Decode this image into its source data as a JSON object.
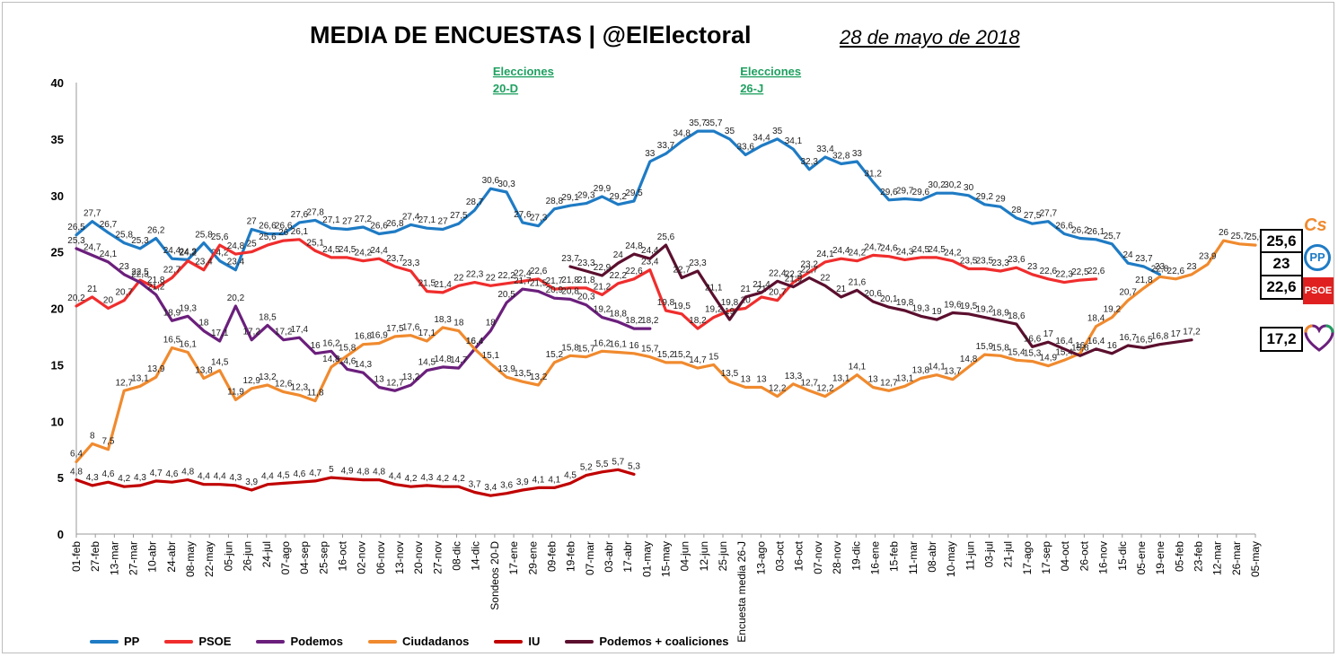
{
  "title": "MEDIA DE ENCUESTAS | @ElElectoral",
  "date": "28 de mayo de 2018",
  "chart_data": {
    "type": "line",
    "title": "MEDIA DE ENCUESTAS | @ElElectoral",
    "ylim": [
      0,
      40
    ],
    "yticks": [
      0,
      5,
      10,
      15,
      20,
      25,
      30,
      35,
      40
    ],
    "grid": false,
    "legend_position": "bottom",
    "x_ticks": [
      "01-feb",
      "27-feb",
      "13-mar",
      "27-mar",
      "10-abr",
      "24-abr",
      "08-may",
      "22-may",
      "05-jun",
      "26-jun",
      "24-jul",
      "07-ago",
      "04-sep",
      "25-sep",
      "16-oct",
      "02-nov",
      "06-nov",
      "13-nov",
      "20-nov",
      "27-nov",
      "08-dic",
      "14-dic",
      "Sondeos 20-D",
      "17-ene",
      "29-ene",
      "09-feb",
      "19-feb",
      "07-mar",
      "03-abr",
      "17-abr",
      "01-may",
      "15-may",
      "04-jun",
      "12-jun",
      "25-jun",
      "Encuesta media 26-J",
      "13-ago",
      "03-oct",
      "16-oct",
      "07-nov",
      "28-nov",
      "19-dic",
      "16-ene",
      "15-feb",
      "11-mar",
      "08-abr",
      "10-may",
      "11-jun",
      "03-jul",
      "21-jul",
      "17-ago",
      "17-sep",
      "04-oct",
      "26-oct",
      "16-nov",
      "15-dic",
      "05-ene",
      "19-ene",
      "05-feb",
      "23-feb",
      "12-mar",
      "26-mar",
      "05-may"
    ],
    "annotations": [
      {
        "label": "Elecciones 20-D",
        "x_index": 22
      },
      {
        "label": "Elecciones 26-J",
        "x_index": 35
      }
    ],
    "series": [
      {
        "name": "PP",
        "color": "#1f7bc4",
        "start": 0,
        "values": [
          26.5,
          27.7,
          26.7,
          25.8,
          25.3,
          26.2,
          24.4,
          24.3,
          25.8,
          24.2,
          23.4,
          27,
          26.6,
          26.6,
          27.6,
          27.8,
          27.1,
          27,
          27.2,
          26.6,
          26.8,
          27.4,
          27.1,
          27,
          27.5,
          28.7,
          30.6,
          30.3,
          27.6,
          27.3,
          28.8,
          29.1,
          29.3,
          29.9,
          29.2,
          29.5,
          33,
          33.7,
          34.8,
          35.7,
          35.7,
          35,
          33.6,
          34.4,
          35,
          34.1,
          32.3,
          33.4,
          32.8,
          33,
          31.2,
          29.6,
          29.7,
          29.6,
          30.2,
          30.2,
          30,
          29.2,
          29,
          28,
          27.5,
          27.7,
          26.6,
          26.2,
          26.1,
          25.7,
          24,
          23.7,
          23
        ],
        "end_label": "23"
      },
      {
        "name": "PSOE",
        "color": "#f02d2d",
        "start": 0,
        "values": [
          20.2,
          21,
          20,
          20.7,
          22.5,
          21.8,
          22.7,
          24.2,
          23.4,
          25.6,
          24.8,
          25,
          25.6,
          26,
          26.1,
          25.1,
          24.5,
          24.5,
          24.2,
          24.4,
          23.7,
          23.3,
          21.5,
          21.4,
          22,
          22.3,
          22,
          22.2,
          22.4,
          22.6,
          21.7,
          21.8,
          21.8,
          21.2,
          22.2,
          22.6,
          23.4,
          19.8,
          19.5,
          18.2,
          19.2,
          19.8,
          20,
          21,
          20.7,
          22.3,
          23.2,
          24.1,
          24.4,
          24.2,
          24.7,
          24.6,
          24.3,
          24.5,
          24.5,
          24.2,
          23.5,
          23.5,
          23.3,
          23.6,
          23,
          22.6,
          22.3,
          22.5,
          22.6
        ],
        "end_label": "22,6"
      },
      {
        "name": "Podemos",
        "color": "#6b1f7c",
        "start": 0,
        "values": [
          25.3,
          24.7,
          24.1,
          23,
          22.3,
          21.2,
          18.9,
          19.3,
          18,
          17.1,
          20.2,
          17.2,
          18.5,
          17.2,
          17.4,
          16,
          16.2,
          14.6,
          14.3,
          13,
          12.7,
          13.2,
          14.5,
          14.8,
          14.7,
          16.4,
          18,
          20.5,
          21.7,
          21.5,
          20.9,
          20.8,
          20.3,
          19.2,
          18.8,
          18.2,
          18.2
        ],
        "end_label": ""
      },
      {
        "name": "Ciudadanos",
        "color": "#f08a2e",
        "start": 0,
        "values": [
          6.4,
          8,
          7.5,
          12.7,
          13.1,
          13.9,
          16.5,
          16.1,
          13.8,
          14.5,
          11.9,
          12.9,
          13.2,
          12.6,
          12.3,
          11.8,
          14.8,
          15.8,
          16.8,
          16.9,
          17.5,
          17.6,
          17.1,
          18.3,
          18,
          16.4,
          15.1,
          13.9,
          13.5,
          13.2,
          15.2,
          15.8,
          15.7,
          16.2,
          16.1,
          16,
          15.7,
          15.2,
          15.2,
          14.7,
          15,
          13.5,
          13,
          13,
          12.2,
          13.3,
          12.7,
          12.2,
          13.1,
          14.1,
          13,
          12.7,
          13.1,
          13.8,
          14.1,
          13.7,
          14.8,
          15.9,
          15.8,
          15.4,
          15.3,
          14.9,
          15.4,
          16,
          18.4,
          19.2,
          20.7,
          21.8,
          22.8,
          22.6,
          23,
          23.9,
          26,
          25.7,
          25.6
        ],
        "end_label": "25,6"
      },
      {
        "name": "IU",
        "color": "#c00000",
        "start": 0,
        "values": [
          4.8,
          4.3,
          4.6,
          4.2,
          4.3,
          4.7,
          4.6,
          4.8,
          4.4,
          4.4,
          4.3,
          3.9,
          4.4,
          4.5,
          4.6,
          4.7,
          5,
          4.9,
          4.8,
          4.8,
          4.4,
          4.2,
          4.3,
          4.2,
          4.2,
          3.7,
          3.4,
          3.6,
          3.9,
          4.1,
          4.1,
          4.5,
          5.2,
          5.5,
          5.7,
          5.3
        ],
        "end_label": ""
      },
      {
        "name": "Podemos + coaliciones",
        "color": "#5b0f2e",
        "start": 31,
        "values": [
          23.7,
          23.3,
          22.9,
          24,
          24.8,
          24.4,
          25.6,
          22.7,
          23.3,
          21.1,
          19,
          21,
          21.4,
          22.4,
          21.9,
          22.7,
          22,
          21,
          21.6,
          20.6,
          20.1,
          19.8,
          19.3,
          19,
          19.6,
          19.5,
          19.2,
          18.9,
          18.6,
          16.6,
          17,
          16.4,
          15.8,
          16.4,
          16,
          16.7,
          16.5,
          16.8,
          17,
          17.2
        ],
        "end_label": "17,2"
      }
    ],
    "highlights": [
      {
        "text": "28,7",
        "series": "PP"
      },
      {
        "text": "33",
        "series": "PP"
      },
      {
        "text": "22",
        "series": "PSOE"
      },
      {
        "text": "22,6",
        "series": "PSOE"
      },
      {
        "text": "20,7",
        "series": "Podemos"
      },
      {
        "text": "21,1",
        "series": "Podemos + coaliciones"
      },
      {
        "text": "13,9",
        "series": "Ciudadanos"
      },
      {
        "text": "13",
        "series": "Ciudadanos"
      },
      {
        "text": "3,7",
        "series": "IU"
      }
    ],
    "end_markers": [
      {
        "text": "25,6",
        "party": "Cs",
        "color": "#f08a2e"
      },
      {
        "text": "23",
        "party": "PP",
        "color": "#1f7bc4"
      },
      {
        "text": "22,6",
        "party": "PSOE",
        "color": "#e02020"
      },
      {
        "text": "17,2",
        "party": "Podemos",
        "color": "#6b1f7c"
      }
    ]
  },
  "legend": [
    {
      "label": "PP",
      "color": "#1f7bc4"
    },
    {
      "label": "PSOE",
      "color": "#f02d2d"
    },
    {
      "label": "Podemos",
      "color": "#6b1f7c"
    },
    {
      "label": "Ciudadanos",
      "color": "#f08a2e"
    },
    {
      "label": "IU",
      "color": "#c00000"
    },
    {
      "label": "Podemos + coaliciones",
      "color": "#5b0f2e"
    }
  ],
  "icons": {
    "cs_logo_text": "Cs",
    "pp_logo_text": "PP",
    "psoe_logo_text": "PSOE"
  }
}
